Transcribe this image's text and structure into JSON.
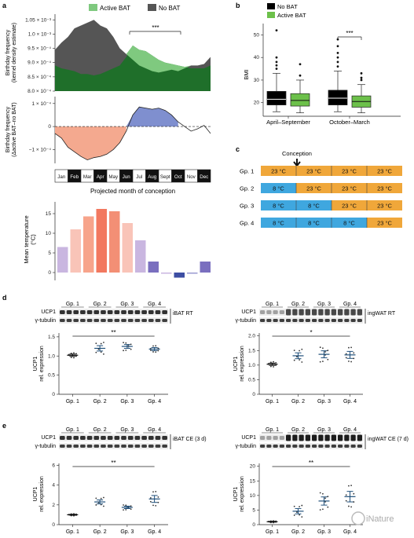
{
  "colors": {
    "active_bat": "#7fc97f",
    "active_bat_dark": "#1f6f2a",
    "no_bat": "#555555",
    "pos_diff": "#7f8fcf",
    "neg_diff": "#f4a98f",
    "warm": "#f0a73a",
    "cold": "#3fa7df",
    "box_green": "#6cc04a",
    "box_black": "#000000",
    "blot_dark": "#111111"
  },
  "panels": {
    "a": "a",
    "b": "b",
    "c": "c",
    "d": "d",
    "e": "e"
  },
  "watermark": "iNature",
  "chart_data": [
    {
      "id": "a1",
      "type": "area",
      "legend": [
        "Active BAT",
        "No BAT"
      ],
      "ylabel": "Birthday frequency\n(kernel density estimate)",
      "yticks": [
        "1.05 × 10⁻³",
        "1.0 × 10⁻³",
        "9.5 × 10⁻⁴",
        "9.0 × 10⁻⁴",
        "8.5 × 10⁻⁴",
        "8.0 × 10⁻⁴"
      ],
      "ytick_values": [
        0.00105,
        0.001,
        0.00095,
        0.0009,
        0.00085,
        0.0008
      ],
      "ylim": [
        0.0008,
        0.00107
      ],
      "significance": "***",
      "x": [
        0,
        0.5,
        1,
        1.5,
        2,
        2.5,
        3,
        3.5,
        4,
        4.5,
        5,
        5.5,
        6,
        6.5,
        7,
        7.5,
        8,
        8.5,
        9,
        9.5,
        10,
        10.5,
        11,
        11.5,
        12
      ],
      "series": [
        {
          "name": "No BAT",
          "values": [
            0.000945,
            0.00097,
            0.00099,
            0.00102,
            0.00103,
            0.00104,
            0.00105,
            0.00103,
            0.00102,
            0.00099,
            0.00095,
            0.00093,
            0.00091,
            0.00089,
            0.00088,
            0.00087,
            0.000865,
            0.00087,
            0.000875,
            0.00087,
            0.00088,
            0.00089,
            0.00089,
            0.000895,
            0.00092
          ]
        },
        {
          "name": "Active BAT",
          "values": [
            0.00089,
            0.00088,
            0.000875,
            0.00087,
            0.00086,
            0.00086,
            0.000855,
            0.00086,
            0.00087,
            0.00088,
            0.00089,
            0.00092,
            0.00096,
            0.000945,
            0.00094,
            0.000925,
            0.00091,
            0.0009,
            0.000895,
            0.00089,
            0.000885,
            0.00088,
            0.00088,
            0.00088,
            0.00089
          ]
        }
      ]
    },
    {
      "id": "a2",
      "type": "area",
      "ylabel": "Birthday frequency\n(Δactive BAT–no BAT)",
      "yticks": [
        "1 × 10⁻⁴",
        "0",
        "−1 × 10⁻⁴"
      ],
      "ytick_values": [
        0.0001,
        0,
        -0.0001
      ],
      "ylim": [
        -0.00016,
        0.00013
      ],
      "x": [
        0,
        0.5,
        1,
        1.5,
        2,
        2.5,
        3,
        3.5,
        4,
        4.5,
        5,
        5.5,
        6,
        6.5,
        7,
        7.5,
        8,
        8.5,
        9,
        9.5,
        10,
        10.5,
        11,
        11.5,
        12
      ],
      "values": [
        -3e-05,
        -5e-05,
        -9e-05,
        -0.00011,
        -0.00013,
        -0.000145,
        -0.000135,
        -0.00013,
        -0.00012,
        -0.0001,
        -7e-05,
        -2e-05,
        5e-05,
        8.5e-05,
        8e-05,
        7.5e-05,
        8e-05,
        7e-05,
        5e-05,
        2e-05,
        0.0,
        -2e-05,
        -1e-05,
        5e-06,
        -3e-05
      ]
    },
    {
      "id": "a3",
      "type": "bar",
      "categories": [
        "Jan",
        "Feb",
        "Mar",
        "Apr",
        "May",
        "Jun",
        "Jul",
        "Aug",
        "Sept",
        "Oct",
        "Nov",
        "Dec"
      ],
      "category_style": [
        "light",
        "dark",
        "light",
        "dark",
        "light",
        "dark",
        "light",
        "dark",
        "light",
        "dark",
        "light",
        "dark"
      ],
      "xlabel": "Projected month of conception",
      "ylabel": "Mean temperature\n(°C)",
      "yticks": [
        "15",
        "10",
        "5",
        "0"
      ],
      "ytick_values": [
        15,
        10,
        5,
        0
      ],
      "ylim": [
        -2,
        18
      ],
      "values": [
        6.5,
        11,
        14.3,
        16.2,
        15.6,
        12.6,
        8.2,
        2.8,
        -0.3,
        -1.3,
        -0.3,
        2.8
      ],
      "colors": [
        "#c9b6e0",
        "#f9c4b8",
        "#f7a48b",
        "#f2785f",
        "#f38f75",
        "#f9c4b8",
        "#c9b6e0",
        "#7a6fbf",
        "#c9b6e0",
        "#3d4ea3",
        "#9a9ad0",
        "#7a6fbf"
      ]
    },
    {
      "id": "b",
      "type": "box",
      "legend": [
        "No BAT",
        "Active BAT"
      ],
      "ylabel": "BMI",
      "yticks": [
        "50",
        "40",
        "30",
        "20"
      ],
      "ytick_values": [
        50,
        40,
        30,
        20
      ],
      "ylim": [
        14,
        55
      ],
      "groups": [
        "April–September",
        "October–March"
      ],
      "significance": "***",
      "series": [
        {
          "name": "No BAT",
          "boxes": [
            {
              "whisker_low": 16,
              "q1": 19,
              "median": 21.5,
              "q3": 25,
              "whisker_high": 33,
              "outliers": [
                35,
                36.5,
                38,
                40,
                52
              ]
            },
            {
              "whisker_low": 16,
              "q1": 19,
              "median": 22,
              "q3": 25.5,
              "whisker_high": 34,
              "outliers": [
                36,
                38,
                40,
                42,
                45,
                48
              ]
            }
          ]
        },
        {
          "name": "Active BAT",
          "boxes": [
            {
              "whisker_low": 15.5,
              "q1": 18.5,
              "median": 21,
              "q3": 24,
              "whisker_high": 30,
              "outliers": [
                32,
                37
              ]
            },
            {
              "whisker_low": 15.5,
              "q1": 18,
              "median": 20.5,
              "q3": 23,
              "whisker_high": 28,
              "outliers": [
                30,
                31,
                33
              ]
            }
          ]
        }
      ]
    },
    {
      "id": "c",
      "type": "table",
      "title": "Conception",
      "rows": [
        {
          "label": "Gp. 1",
          "cells": [
            {
              "text": "23 °C",
              "kind": "warm"
            },
            {
              "text": "23 °C",
              "kind": "warm"
            },
            {
              "text": "23 °C",
              "kind": "warm"
            },
            {
              "text": "23 °C",
              "kind": "warm"
            }
          ]
        },
        {
          "label": "Gp. 2",
          "cells": [
            {
              "text": "8 °C",
              "kind": "cold"
            },
            {
              "text": "23 °C",
              "kind": "warm"
            },
            {
              "text": "23 °C",
              "kind": "warm"
            },
            {
              "text": "23 °C",
              "kind": "warm"
            }
          ]
        },
        {
          "label": "Gp. 3",
          "cells": [
            {
              "text": "8 °C",
              "kind": "cold"
            },
            {
              "text": "8 °C",
              "kind": "cold"
            },
            {
              "text": "23 °C",
              "kind": "warm"
            },
            {
              "text": "23 °C",
              "kind": "warm"
            }
          ]
        },
        {
          "label": "Gp. 4",
          "cells": [
            {
              "text": "8 °C",
              "kind": "cold"
            },
            {
              "text": "8 °C",
              "kind": "cold"
            },
            {
              "text": "8 °C",
              "kind": "cold"
            },
            {
              "text": "23 °C",
              "kind": "warm"
            }
          ]
        }
      ]
    },
    {
      "id": "d_left",
      "type": "scatter",
      "blot_groups": [
        "Gp. 1",
        "Gp. 2",
        "Gp. 3",
        "Gp. 4"
      ],
      "blot_rows": [
        "UCP1",
        "γ-tubulin"
      ],
      "blot_label": "iBAT RT",
      "ylabel": "UCP1\nrel. expression",
      "yticks": [
        "1.5",
        "1.0",
        "0.5",
        "0"
      ],
      "ytick_values": [
        1.5,
        1.0,
        0.5,
        0
      ],
      "ylim": [
        0,
        1.6
      ],
      "categories": [
        "Gp. 1",
        "Gp. 2",
        "Gp. 3",
        "Gp. 4"
      ],
      "means": [
        1.02,
        1.2,
        1.25,
        1.18
      ],
      "sem": [
        0.03,
        0.07,
        0.05,
        0.04
      ],
      "significance": "**"
    },
    {
      "id": "d_right",
      "type": "scatter",
      "blot_groups": [
        "Gp. 1",
        "Gp. 2",
        "Gp. 3",
        "Gp. 4"
      ],
      "blot_rows": [
        "UCP1",
        "γ-tubulin"
      ],
      "blot_label": "ingWAT RT",
      "ylabel": "UCP1\nrel. expression",
      "yticks": [
        "2.0",
        "1.5",
        "1.0",
        "0.5",
        "0"
      ],
      "ytick_values": [
        2.0,
        1.5,
        1.0,
        0.5,
        0
      ],
      "ylim": [
        0,
        2.1
      ],
      "categories": [
        "Gp. 1",
        "Gp. 2",
        "Gp. 3",
        "Gp. 4"
      ],
      "means": [
        1.03,
        1.32,
        1.37,
        1.35
      ],
      "sem": [
        0.04,
        0.1,
        0.12,
        0.12
      ],
      "significance": "*"
    },
    {
      "id": "e_left",
      "type": "scatter",
      "blot_groups": [
        "Gp. 1",
        "Gp. 2",
        "Gp. 3",
        "Gp. 4"
      ],
      "blot_rows": [
        "UCP1",
        "γ-tubulin"
      ],
      "blot_label": "iBAT CE (3 d)",
      "ylabel": "UCP1\nrel. expression",
      "yticks": [
        "6",
        "4",
        "2",
        "0"
      ],
      "ytick_values": [
        6,
        4,
        2,
        0
      ],
      "ylim": [
        0,
        6.2
      ],
      "categories": [
        "Gp. 1",
        "Gp. 2",
        "Gp. 3",
        "Gp. 4"
      ],
      "means": [
        1.0,
        2.3,
        1.75,
        2.6
      ],
      "sem": [
        0.05,
        0.2,
        0.12,
        0.35
      ],
      "significance": "**"
    },
    {
      "id": "e_right",
      "type": "scatter",
      "blot_groups": [
        "Gp. 1",
        "Gp. 2",
        "Gp. 3",
        "Gp. 4"
      ],
      "blot_rows": [
        "UCP1",
        "γ-tubulin"
      ],
      "blot_label": "ingWAT CE (7 d)",
      "ylabel": "UCP1\nrel. expression",
      "yticks": [
        "20",
        "15",
        "10",
        "5",
        "0"
      ],
      "ytick_values": [
        20,
        15,
        10,
        5,
        0
      ],
      "ylim": [
        0,
        21
      ],
      "categories": [
        "Gp. 1",
        "Gp. 2",
        "Gp. 3",
        "Gp. 4"
      ],
      "means": [
        1.0,
        4.6,
        8.1,
        9.6
      ],
      "sem": [
        0.15,
        0.9,
        1.4,
        1.8
      ],
      "significance": "**"
    }
  ]
}
